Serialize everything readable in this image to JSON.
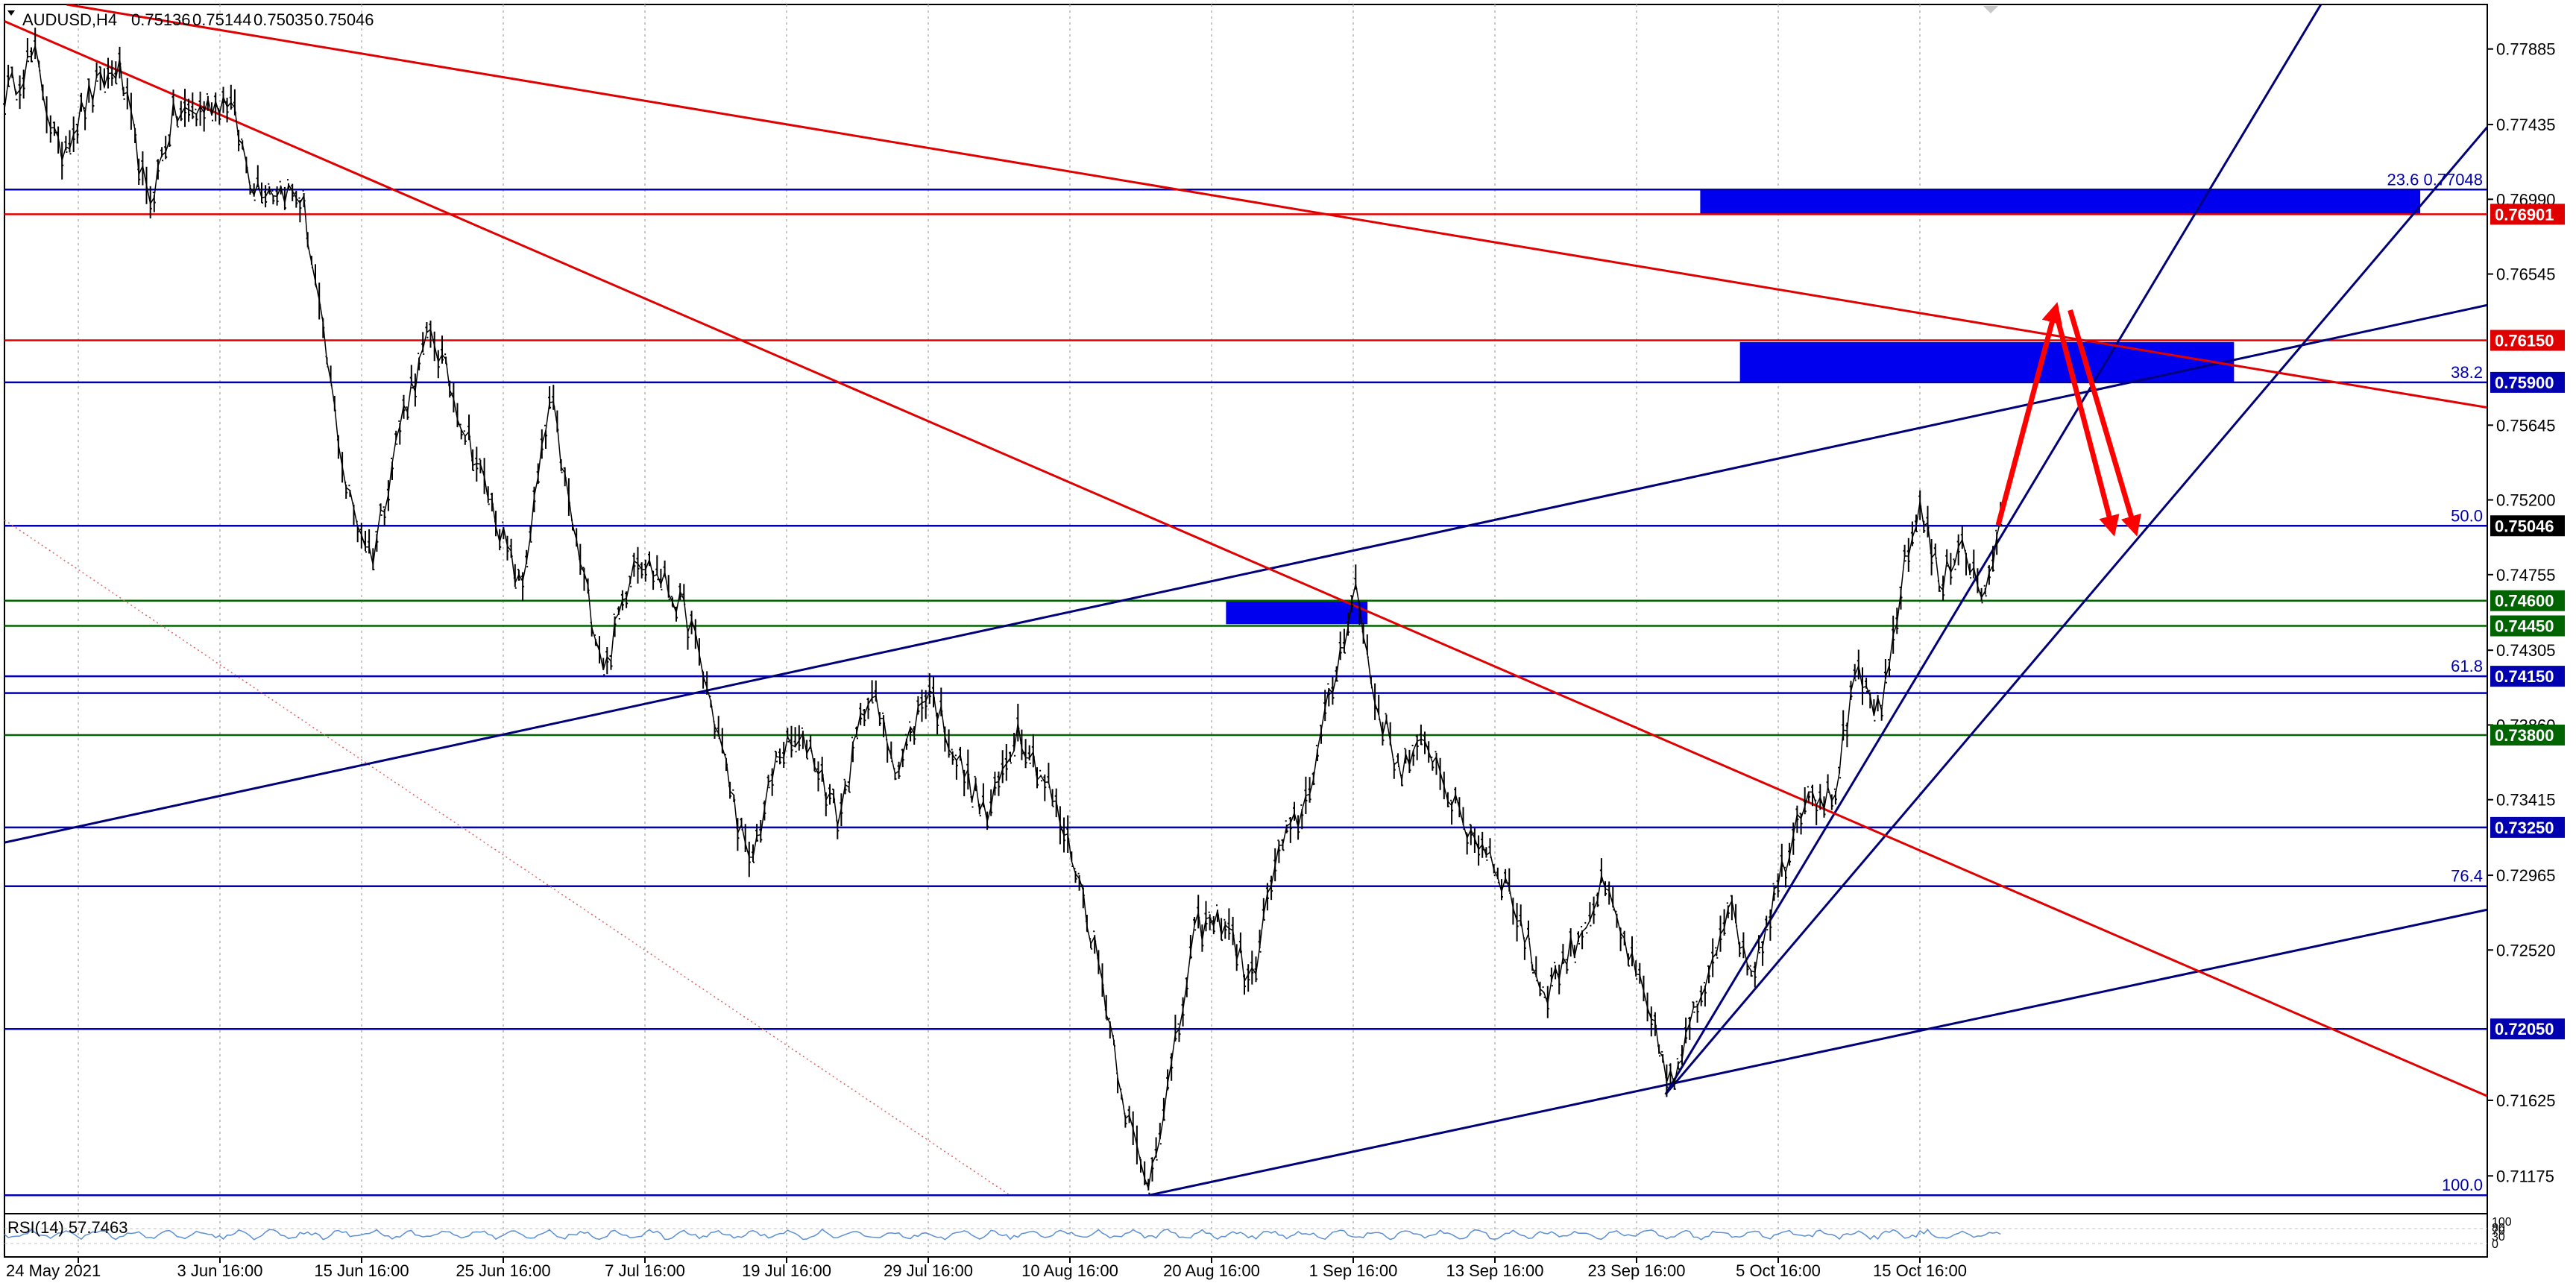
{
  "chart_data": {
    "type": "candlestick",
    "header": {
      "symbol_tf": "AUDUSD,H4",
      "ohlc": [
        "0.75136",
        "0.75144",
        "0.75035",
        "0.75046"
      ]
    },
    "rsi_label": "RSI(14) 57.7463",
    "rsi_scale": [
      "100",
      "80",
      "70",
      "30",
      "0"
    ],
    "ylim": [
      0.7095,
      0.7815
    ],
    "y_ticks": [
      0.77885,
      0.77435,
      0.7699,
      0.76545,
      0.75645,
      0.752,
      0.74755,
      0.74305,
      0.7386,
      0.73415,
      0.72965,
      0.7252,
      0.71625,
      0.71175
    ],
    "x_ticks": [
      "24 May 2021",
      "3 Jun 16:00",
      "15 Jun 16:00",
      "25 Jun 16:00",
      "7 Jul 16:00",
      "19 Jul 16:00",
      "29 Jul 16:00",
      "10 Aug 16:00",
      "20 Aug 16:00",
      "1 Sep 16:00",
      "13 Sep 16:00",
      "23 Sep 16:00",
      "5 Oct 16:00",
      "15 Oct 16:00"
    ],
    "price_path": [
      [
        0.0,
        0.776
      ],
      [
        0.012,
        0.7785
      ],
      [
        0.022,
        0.7725
      ],
      [
        0.034,
        0.776
      ],
      [
        0.046,
        0.7778
      ],
      [
        0.058,
        0.7695
      ],
      [
        0.068,
        0.7748
      ],
      [
        0.078,
        0.7752
      ],
      [
        0.09,
        0.776
      ],
      [
        0.1,
        0.7708
      ],
      [
        0.112,
        0.7705
      ],
      [
        0.12,
        0.77
      ],
      [
        0.128,
        0.762
      ],
      [
        0.138,
        0.7525
      ],
      [
        0.148,
        0.7485
      ],
      [
        0.16,
        0.757
      ],
      [
        0.172,
        0.762
      ],
      [
        0.186,
        0.756
      ],
      [
        0.198,
        0.751
      ],
      [
        0.208,
        0.7465
      ],
      [
        0.22,
        0.758
      ],
      [
        0.23,
        0.7495
      ],
      [
        0.242,
        0.7418
      ],
      [
        0.254,
        0.749
      ],
      [
        0.266,
        0.747
      ],
      [
        0.276,
        0.7448
      ],
      [
        0.286,
        0.739
      ],
      [
        0.3,
        0.73
      ],
      [
        0.312,
        0.737
      ],
      [
        0.324,
        0.7375
      ],
      [
        0.336,
        0.733
      ],
      [
        0.348,
        0.7408
      ],
      [
        0.36,
        0.736
      ],
      [
        0.372,
        0.741
      ],
      [
        0.384,
        0.7365
      ],
      [
        0.396,
        0.733
      ],
      [
        0.408,
        0.7385
      ],
      [
        0.42,
        0.735
      ],
      [
        0.432,
        0.73
      ],
      [
        0.442,
        0.7235
      ],
      [
        0.452,
        0.7155
      ],
      [
        0.46,
        0.711
      ],
      [
        0.47,
        0.718
      ],
      [
        0.48,
        0.7265
      ],
      [
        0.492,
        0.727
      ],
      [
        0.502,
        0.723
      ],
      [
        0.512,
        0.7305
      ],
      [
        0.524,
        0.734
      ],
      [
        0.536,
        0.7415
      ],
      [
        0.544,
        0.747
      ],
      [
        0.552,
        0.74
      ],
      [
        0.562,
        0.736
      ],
      [
        0.574,
        0.7375
      ],
      [
        0.586,
        0.733
      ],
      [
        0.598,
        0.731
      ],
      [
        0.608,
        0.728
      ],
      [
        0.62,
        0.7225
      ],
      [
        0.632,
        0.7255
      ],
      [
        0.644,
        0.729
      ],
      [
        0.654,
        0.725
      ],
      [
        0.664,
        0.7205
      ],
      [
        0.672,
        0.717
      ],
      [
        0.682,
        0.722
      ],
      [
        0.694,
        0.728
      ],
      [
        0.704,
        0.724
      ],
      [
        0.716,
        0.73
      ],
      [
        0.726,
        0.735
      ],
      [
        0.736,
        0.734
      ],
      [
        0.746,
        0.7415
      ],
      [
        0.756,
        0.739
      ],
      [
        0.764,
        0.747
      ],
      [
        0.772,
        0.752
      ],
      [
        0.78,
        0.7465
      ],
      [
        0.788,
        0.75
      ],
      [
        0.796,
        0.746
      ],
      [
        0.804,
        0.75
      ]
    ],
    "levels": [
      {
        "price": 0.77048,
        "color": "#0000b0",
        "text": "23.6 0.77048",
        "box": false
      },
      {
        "price": 0.76901,
        "color": "#e00000",
        "text": "0.76901",
        "box": true
      },
      {
        "price": 0.7615,
        "color": "#e00000",
        "text": "0.76150",
        "box": true
      },
      {
        "price": 0.759,
        "color": "#0000b0",
        "text": "0.75900",
        "box": true,
        "fib": "38.2"
      },
      {
        "price": 0.75046,
        "color": "#0000b0",
        "text": "0.75046",
        "box": true,
        "fib": "50.0",
        "current": true
      },
      {
        "price": 0.746,
        "color": "#006400",
        "text": "0.74600",
        "box": true
      },
      {
        "price": 0.7445,
        "color": "#006400",
        "text": "0.74450",
        "box": true
      },
      {
        "price": 0.7415,
        "color": "#0000b0",
        "text": "0.74150",
        "box": true,
        "fib": "61.8"
      },
      {
        "price": 0.7405,
        "color": "#0000b0",
        "text": "",
        "box": false
      },
      {
        "price": 0.738,
        "color": "#006400",
        "text": "0.73800",
        "box": true
      },
      {
        "price": 0.7325,
        "color": "#0000b0",
        "text": "0.73250",
        "box": true
      },
      {
        "price": 0.729,
        "color": "#0000b0",
        "text": "",
        "box": false,
        "fib": "76.4"
      },
      {
        "price": 0.7205,
        "color": "#0000b0",
        "text": "0.72050",
        "box": true
      },
      {
        "price": 0.7106,
        "color": "#0000b0",
        "text": "",
        "box": false,
        "fib": "100.0"
      }
    ],
    "zones": [
      {
        "x0": 0.683,
        "x1": 0.973,
        "p0": 0.7705,
        "p1": 0.769,
        "color": "#0000ee"
      },
      {
        "x0": 0.699,
        "x1": 0.898,
        "p0": 0.7614,
        "p1": 0.759,
        "color": "#0000ee"
      },
      {
        "x0": 0.492,
        "x1": 0.549,
        "p0": 0.746,
        "p1": 0.7446,
        "color": "#0000ee"
      }
    ],
    "trendlines": [
      {
        "x0": 0.0,
        "p0": 0.7316,
        "x1": 1.0,
        "p1": 0.7636,
        "color": "#00007a"
      },
      {
        "x0": 0.461,
        "p0": 0.7106,
        "x1": 1.0,
        "p1": 0.7276,
        "color": "#00007a"
      },
      {
        "x0": 0.669,
        "p0": 0.7166,
        "x1": 0.933,
        "p1": 0.7815,
        "color": "#00007a"
      },
      {
        "x0": 0.669,
        "p0": 0.7166,
        "x1": 1.0,
        "p1": 0.7742,
        "color": "#00007a"
      },
      {
        "x0": 0.025,
        "p0": 0.7815,
        "x1": 1.0,
        "p1": 0.7575,
        "color": "#e00000"
      },
      {
        "x0": 0.0,
        "p0": 0.7805,
        "x1": 1.0,
        "p1": 0.7165,
        "color": "#e00000"
      }
    ],
    "dotted_line": {
      "x0": 0.0,
      "p0": 0.7508,
      "x1": 0.405,
      "p1": 0.7106,
      "color": "#e06060"
    },
    "arrows": [
      {
        "x0": 0.803,
        "p0": 0.7505,
        "x1": 0.826,
        "p1": 0.7633
      },
      {
        "x0": 0.826,
        "p0": 0.7633,
        "x1": 0.849,
        "p1": 0.7503
      },
      {
        "x0": 0.832,
        "p0": 0.7633,
        "x1": 0.858,
        "p1": 0.7503
      }
    ]
  }
}
